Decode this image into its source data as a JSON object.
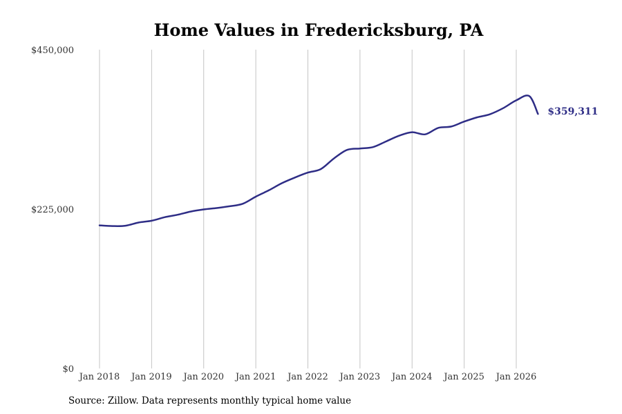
{
  "chart_data": {
    "type": "line",
    "title": "Home Values in Fredericksburg, PA",
    "xlabel": "",
    "ylabel": "",
    "ylim": [
      0,
      450000
    ],
    "yticks": [
      {
        "value": 0,
        "label": "$0"
      },
      {
        "value": 225000,
        "label": "$225,000"
      },
      {
        "value": 450000,
        "label": "$450,000"
      }
    ],
    "xticks": [
      {
        "value": "2018-01",
        "label": "Jan 2018"
      },
      {
        "value": "2019-01",
        "label": "Jan 2019"
      },
      {
        "value": "2020-01",
        "label": "Jan 2020"
      },
      {
        "value": "2021-01",
        "label": "Jan 2021"
      },
      {
        "value": "2022-01",
        "label": "Jan 2022"
      },
      {
        "value": "2023-01",
        "label": "Jan 2023"
      },
      {
        "value": "2024-01",
        "label": "Jan 2024"
      },
      {
        "value": "2025-01",
        "label": "Jan 2025"
      },
      {
        "value": "2026-01",
        "label": "Jan 2026"
      }
    ],
    "grid": "vertical",
    "line_color": "#2e2d86",
    "series": [
      {
        "x": [
          "2018-01",
          "2018-04",
          "2018-07",
          "2018-10",
          "2019-01",
          "2019-04",
          "2019-07",
          "2019-10",
          "2020-01",
          "2020-04",
          "2020-07",
          "2020-10",
          "2021-01",
          "2021-04",
          "2021-07",
          "2021-10",
          "2022-01",
          "2022-04",
          "2022-07",
          "2022-10",
          "2023-01",
          "2023-04",
          "2023-07",
          "2023-10",
          "2024-01",
          "2024-04",
          "2024-07",
          "2024-10",
          "2025-01",
          "2025-04",
          "2025-07",
          "2025-10",
          "2026-01",
          "2026-04",
          "2026-06"
        ],
        "values": [
          202000,
          201000,
          201500,
          206000,
          208500,
          213500,
          217000,
          221500,
          224500,
          226500,
          229000,
          232500,
          242500,
          251500,
          261500,
          269500,
          276500,
          281500,
          296500,
          308500,
          310500,
          312500,
          320500,
          328500,
          333500,
          330500,
          339500,
          341500,
          348500,
          354500,
          359000,
          367500,
          378500,
          384500,
          359311
        ]
      }
    ],
    "end_label": "$359,311",
    "source": "Source: Zillow. Data represents monthly typical home value"
  }
}
